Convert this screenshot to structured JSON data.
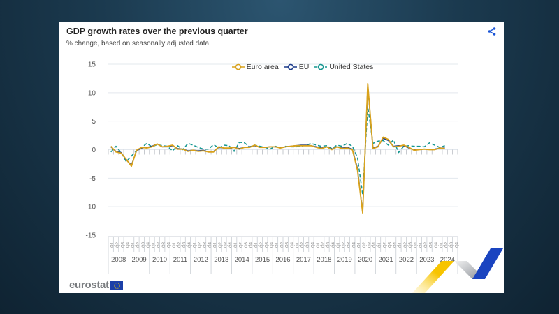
{
  "header": {
    "title": "GDP growth rates over the previous quarter",
    "subtitle": "% change, based on seasonally adjusted data"
  },
  "share_icon": "share-icon",
  "logo": {
    "text": "eurostat",
    "flag_icon": "eu-flag-icon"
  },
  "colors": {
    "euro_area": "#d9a21b",
    "eu": "#1a3a8a",
    "united_states": "#13958f",
    "grid": "#e3e8ee",
    "axis_text": "#555555"
  },
  "chart_data": {
    "type": "line",
    "title": "GDP growth rates over the previous quarter",
    "subtitle": "% change, based on seasonally adjusted data",
    "xlabel": "",
    "ylabel": "",
    "ylim": [
      -15,
      15
    ],
    "yticks": [
      15,
      10,
      5,
      0,
      -5,
      -10,
      -15
    ],
    "grid": true,
    "legend_position": "top-center",
    "quarter_labels": [
      "Q1",
      "Q2",
      "Q3",
      "Q4"
    ],
    "years": [
      "2008",
      "2009",
      "2010",
      "2011",
      "2012",
      "2013",
      "2014",
      "2015",
      "2016",
      "2017",
      "2018",
      "2019",
      "2020",
      "2021",
      "2022",
      "2023",
      "2024"
    ],
    "x_note": "Quarterly, 2008Q1 to 2024Q4 axis; data through 2024Q2",
    "series": [
      {
        "name": "Euro area",
        "style": "solid",
        "values": [
          0.6,
          -0.4,
          -0.6,
          -1.7,
          -2.9,
          -0.1,
          0.4,
          0.3,
          0.5,
          1.0,
          0.5,
          0.6,
          0.8,
          0.1,
          0.1,
          -0.3,
          -0.1,
          -0.3,
          -0.2,
          -0.4,
          -0.4,
          0.5,
          0.3,
          0.3,
          0.4,
          0.1,
          0.4,
          0.4,
          0.8,
          0.4,
          0.4,
          0.5,
          0.5,
          0.3,
          0.5,
          0.6,
          0.7,
          0.7,
          0.7,
          0.7,
          0.4,
          0.2,
          0.5,
          0.0,
          0.5,
          0.2,
          0.3,
          0.0,
          -3.6,
          -11.1,
          11.6,
          0.2,
          0.5,
          2.2,
          1.8,
          0.5,
          0.6,
          0.8,
          0.4,
          -0.1,
          0.0,
          0.1,
          0.0,
          0.0,
          0.3,
          0.2,
          null,
          null
        ]
      },
      {
        "name": "EU",
        "style": "solid",
        "values": [
          0.5,
          -0.3,
          -0.5,
          -1.8,
          -2.7,
          -0.2,
          0.3,
          0.4,
          0.6,
          1.0,
          0.5,
          0.5,
          0.7,
          0.2,
          0.1,
          -0.2,
          -0.1,
          -0.2,
          -0.1,
          -0.4,
          -0.3,
          0.4,
          0.3,
          0.2,
          0.4,
          0.2,
          0.4,
          0.5,
          0.7,
          0.4,
          0.4,
          0.5,
          0.5,
          0.4,
          0.5,
          0.6,
          0.7,
          0.8,
          0.8,
          0.7,
          0.5,
          0.3,
          0.5,
          0.1,
          0.5,
          0.3,
          0.4,
          0.1,
          -3.3,
          -11.0,
          11.3,
          0.3,
          0.6,
          2.0,
          1.6,
          0.6,
          0.7,
          0.7,
          0.3,
          0.0,
          0.1,
          0.1,
          0.1,
          0.1,
          0.3,
          0.3,
          null,
          null
        ]
      },
      {
        "name": "United States",
        "style": "dashed",
        "values": [
          -0.4,
          0.6,
          -0.5,
          -2.1,
          -1.1,
          -0.2,
          0.4,
          1.1,
          0.5,
          0.9,
          0.7,
          0.6,
          -0.2,
          0.7,
          0.0,
          1.1,
          0.8,
          0.4,
          0.1,
          0.1,
          0.9,
          0.3,
          0.8,
          0.7,
          -0.3,
          1.3,
          1.2,
          0.5,
          0.8,
          0.6,
          0.4,
          0.1,
          0.6,
          0.3,
          0.6,
          0.5,
          0.5,
          0.6,
          0.8,
          1.1,
          0.8,
          0.6,
          0.7,
          0.2,
          0.8,
          0.6,
          1.1,
          0.6,
          -1.4,
          -7.9,
          7.6,
          1.1,
          1.5,
          1.6,
          0.8,
          1.7,
          -0.5,
          0.6,
          0.7,
          0.6,
          0.6,
          0.5,
          1.2,
          0.8,
          0.4,
          0.7,
          null,
          null
        ]
      }
    ]
  }
}
